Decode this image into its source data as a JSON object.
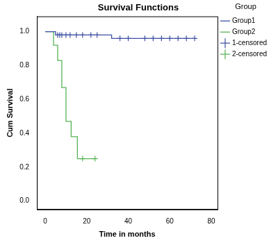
{
  "chart_data": {
    "type": "line",
    "title": "Survival Functions",
    "x_label": "Time in months",
    "y_label": "Cum Survival",
    "legend": "top-right",
    "legend_title": "Group",
    "grid": false,
    "xlim": [
      -4,
      83
    ],
    "xticks": [
      0,
      20,
      40,
      60,
      80
    ],
    "ylim": [
      -0.05,
      1.09
    ],
    "yticks": [
      {
        "value": 0,
        "label": "0.0"
      },
      {
        "value": 0.2,
        "label": "0.2"
      },
      {
        "value": 0.4,
        "label": "0.4"
      },
      {
        "value": 0.6,
        "label": "0.6"
      },
      {
        "value": 0.8,
        "label": "0.8"
      },
      {
        "value": 1,
        "label": "1.0"
      }
    ],
    "series": [
      {
        "name": "Group1",
        "type": "line",
        "line_style": "step",
        "color": "#3f51a3",
        "x": [
          0,
          5,
          32,
          72
        ],
        "values": [
          1.0,
          0.98,
          0.96,
          0.96
        ]
      },
      {
        "name": "Group2",
        "type": "line",
        "line_style": "step",
        "color": "#56b356",
        "x": [
          0,
          4,
          6,
          8,
          10,
          12.5,
          15.5,
          24
        ],
        "values": [
          1.0,
          0.92,
          0.83,
          0.67,
          0.47,
          0.38,
          0.25,
          0.25
        ]
      },
      {
        "name": "1-censored",
        "type": "scatter",
        "marker": "cross",
        "color": "#3f51a3",
        "x": [
          6,
          7,
          8,
          10,
          12,
          15,
          18,
          22,
          25,
          36,
          40,
          48,
          52,
          56,
          60,
          64,
          68,
          72
        ],
        "values": [
          0.98,
          0.98,
          0.98,
          0.98,
          0.98,
          0.98,
          0.98,
          0.98,
          0.98,
          0.96,
          0.96,
          0.96,
          0.96,
          0.96,
          0.96,
          0.96,
          0.96,
          0.96
        ]
      },
      {
        "name": "2-censored",
        "type": "scatter",
        "marker": "cross",
        "color": "#56b356",
        "x": [
          18,
          24
        ],
        "values": [
          0.25,
          0.25
        ]
      }
    ]
  }
}
